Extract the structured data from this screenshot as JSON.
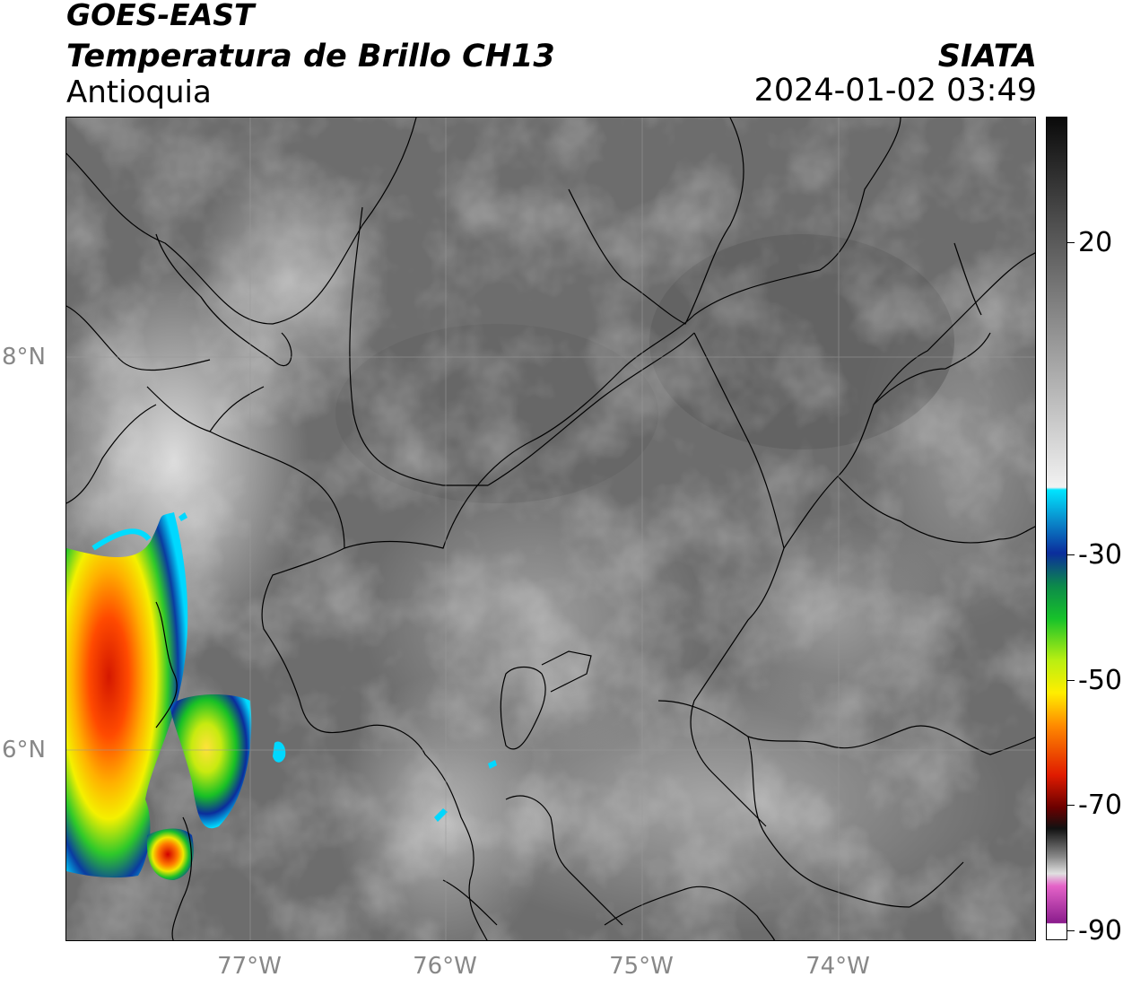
{
  "header": {
    "satellite": "GOES-EAST",
    "product": "Temperatura de Brillo CH13",
    "region": "Antioquia",
    "organization": "SIATA",
    "timestamp": "2024-01-02 03:49"
  },
  "axes": {
    "latitude_labels": [
      "8°N",
      "6°N"
    ],
    "longitude_labels": [
      "77°W",
      "76°W",
      "75°W",
      "74°W"
    ]
  },
  "colorbar": {
    "tick_labels": [
      "20",
      "-30",
      "-50",
      "-70",
      "-90"
    ],
    "colors": {
      "warm_gray": "#6e6e6e",
      "cold_white": "#f0f0f0",
      "cyan": "#00e5ff",
      "blue": "#0b2d9c",
      "green": "#17c22a",
      "yellow": "#ffee00",
      "orange": "#ff8a00",
      "red": "#e01b00",
      "dark_red": "#6a0000",
      "black": "#111111",
      "pink": "#e463c8",
      "purple": "#8a1c8c"
    }
  }
}
